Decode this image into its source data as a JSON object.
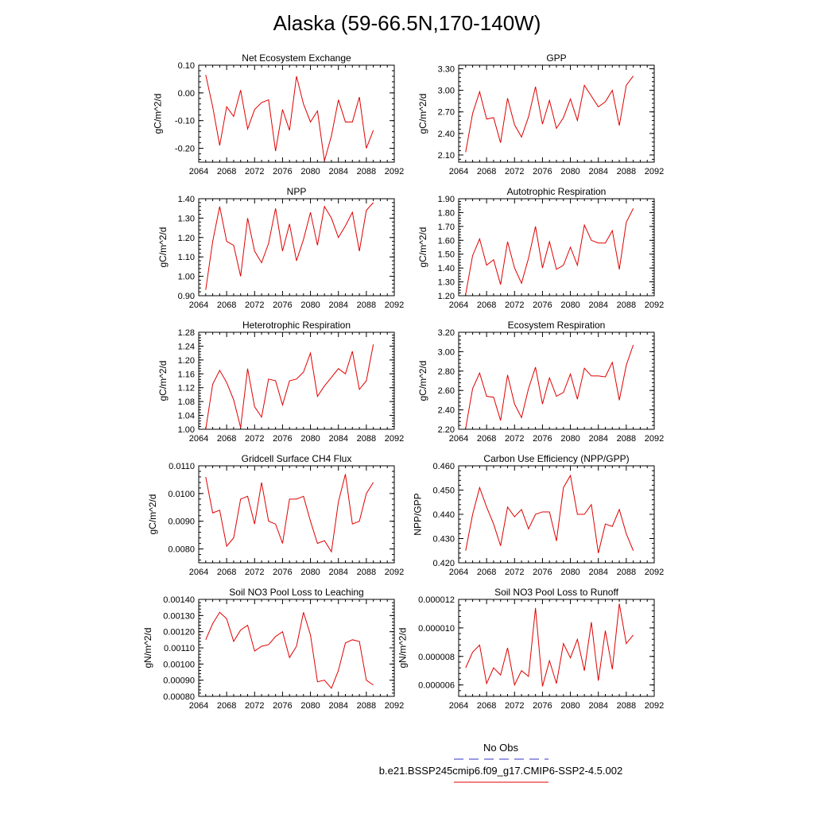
{
  "title": "Alaska (59-66.5N,170-140W)",
  "legend": {
    "obs_label": "No Obs",
    "obs_color": "#3333cc",
    "model_label": "b.e21.BSSP245cmip6.f09_g17.CMIP6-SSP2-4.5.002",
    "model_color": "#e00000"
  },
  "chart_data": [
    {
      "type": "line",
      "title": "Net Ecosystem Exchange",
      "ylabel": "gC/m^2/d",
      "xlim": [
        2064,
        2092
      ],
      "x_ticks": [
        "2064",
        "2068",
        "2072",
        "2076",
        "2080",
        "2084",
        "2088",
        "2092"
      ],
      "ylim": [
        -0.25,
        0.1
      ],
      "y_ticks": [
        "-0.20",
        "-0.10",
        "0.00",
        "0.10"
      ],
      "series": [
        {
          "x": [
            2065,
            2066,
            2067,
            2068,
            2069,
            2070,
            2071,
            2072,
            2073,
            2074,
            2075,
            2076,
            2077,
            2078,
            2079,
            2080,
            2081,
            2082,
            2083,
            2084,
            2085,
            2086,
            2087,
            2088,
            2089
          ],
          "values": [
            0.065,
            -0.05,
            -0.19,
            -0.05,
            -0.085,
            0.01,
            -0.13,
            -0.06,
            -0.035,
            -0.025,
            -0.21,
            -0.06,
            -0.135,
            0.06,
            -0.04,
            -0.105,
            -0.065,
            -0.245,
            -0.155,
            -0.025,
            -0.105,
            -0.105,
            -0.015,
            -0.2,
            -0.135
          ]
        }
      ]
    },
    {
      "type": "line",
      "title": "GPP",
      "ylabel": "gC/m^2/d",
      "xlim": [
        2064,
        2092
      ],
      "x_ticks": [
        "2064",
        "2068",
        "2072",
        "2076",
        "2080",
        "2084",
        "2088",
        "2092"
      ],
      "ylim": [
        2.0,
        3.35
      ],
      "y_ticks": [
        "2.10",
        "2.40",
        "2.70",
        "3.00",
        "3.30"
      ],
      "series": [
        {
          "x": [
            2065,
            2066,
            2067,
            2068,
            2069,
            2070,
            2071,
            2072,
            2073,
            2074,
            2075,
            2076,
            2077,
            2078,
            2079,
            2080,
            2081,
            2082,
            2083,
            2084,
            2085,
            2086,
            2087,
            2088,
            2089
          ],
          "values": [
            2.14,
            2.68,
            2.98,
            2.6,
            2.62,
            2.27,
            2.89,
            2.52,
            2.35,
            2.63,
            3.05,
            2.53,
            2.86,
            2.47,
            2.62,
            2.88,
            2.58,
            3.07,
            2.92,
            2.77,
            2.84,
            3.0,
            2.51,
            3.07,
            3.2
          ]
        }
      ]
    },
    {
      "type": "line",
      "title": "NPP",
      "ylabel": "gC/m^2/d",
      "xlim": [
        2064,
        2092
      ],
      "x_ticks": [
        "2064",
        "2068",
        "2072",
        "2076",
        "2080",
        "2084",
        "2088",
        "2092"
      ],
      "ylim": [
        0.9,
        1.4
      ],
      "y_ticks": [
        "0.90",
        "1.00",
        "1.10",
        "1.20",
        "1.30",
        "1.40"
      ],
      "series": [
        {
          "x": [
            2065,
            2066,
            2067,
            2068,
            2069,
            2070,
            2071,
            2072,
            2073,
            2074,
            2075,
            2076,
            2077,
            2078,
            2079,
            2080,
            2081,
            2082,
            2083,
            2084,
            2085,
            2086,
            2087,
            2088,
            2089
          ],
          "values": [
            0.93,
            1.18,
            1.36,
            1.18,
            1.16,
            1.0,
            1.3,
            1.13,
            1.07,
            1.17,
            1.35,
            1.13,
            1.27,
            1.08,
            1.19,
            1.33,
            1.16,
            1.36,
            1.3,
            1.2,
            1.26,
            1.33,
            1.13,
            1.34,
            1.38
          ]
        }
      ]
    },
    {
      "type": "line",
      "title": "Autotrophic Respiration",
      "ylabel": "gC/m^2/d",
      "xlim": [
        2064,
        2092
      ],
      "x_ticks": [
        "2064",
        "2068",
        "2072",
        "2076",
        "2080",
        "2084",
        "2088",
        "2092"
      ],
      "ylim": [
        1.2,
        1.9
      ],
      "y_ticks": [
        "1.20",
        "1.30",
        "1.40",
        "1.50",
        "1.60",
        "1.70",
        "1.80",
        "1.90"
      ],
      "series": [
        {
          "x": [
            2065,
            2066,
            2067,
            2068,
            2069,
            2070,
            2071,
            2072,
            2073,
            2074,
            2075,
            2076,
            2077,
            2078,
            2079,
            2080,
            2081,
            2082,
            2083,
            2084,
            2085,
            2086,
            2087,
            2088,
            2089
          ],
          "values": [
            1.21,
            1.49,
            1.61,
            1.42,
            1.46,
            1.28,
            1.59,
            1.4,
            1.29,
            1.47,
            1.7,
            1.4,
            1.59,
            1.39,
            1.42,
            1.55,
            1.42,
            1.71,
            1.6,
            1.58,
            1.58,
            1.67,
            1.39,
            1.73,
            1.83
          ]
        }
      ]
    },
    {
      "type": "line",
      "title": "Heterotrophic Respiration",
      "ylabel": "gC/m^2/d",
      "xlim": [
        2064,
        2092
      ],
      "x_ticks": [
        "2064",
        "2068",
        "2072",
        "2076",
        "2080",
        "2084",
        "2088",
        "2092"
      ],
      "ylim": [
        1.0,
        1.28
      ],
      "y_ticks": [
        "1.00",
        "1.04",
        "1.08",
        "1.12",
        "1.16",
        "1.20",
        "1.24",
        "1.28"
      ],
      "series": [
        {
          "x": [
            2065,
            2066,
            2067,
            2068,
            2069,
            2070,
            2071,
            2072,
            2073,
            2074,
            2075,
            2076,
            2077,
            2078,
            2079,
            2080,
            2081,
            2082,
            2083,
            2084,
            2085,
            2086,
            2087,
            2088,
            2089
          ],
          "values": [
            1.0,
            1.13,
            1.17,
            1.135,
            1.085,
            1.005,
            1.175,
            1.065,
            1.035,
            1.145,
            1.14,
            1.07,
            1.14,
            1.145,
            1.165,
            1.22,
            1.095,
            1.125,
            1.15,
            1.175,
            1.16,
            1.225,
            1.115,
            1.14,
            1.245
          ]
        }
      ]
    },
    {
      "type": "line",
      "title": "Ecosystem Respiration",
      "ylabel": "gC/m^2/d",
      "xlim": [
        2064,
        2092
      ],
      "x_ticks": [
        "2064",
        "2068",
        "2072",
        "2076",
        "2080",
        "2084",
        "2088",
        "2092"
      ],
      "ylim": [
        2.2,
        3.2
      ],
      "y_ticks": [
        "2.20",
        "2.40",
        "2.60",
        "2.80",
        "3.00",
        "3.20"
      ],
      "series": [
        {
          "x": [
            2065,
            2066,
            2067,
            2068,
            2069,
            2070,
            2071,
            2072,
            2073,
            2074,
            2075,
            2076,
            2077,
            2078,
            2079,
            2080,
            2081,
            2082,
            2083,
            2084,
            2085,
            2086,
            2087,
            2088,
            2089
          ],
          "values": [
            2.21,
            2.62,
            2.78,
            2.54,
            2.53,
            2.29,
            2.76,
            2.46,
            2.32,
            2.62,
            2.84,
            2.46,
            2.73,
            2.54,
            2.58,
            2.77,
            2.51,
            2.83,
            2.75,
            2.75,
            2.74,
            2.89,
            2.5,
            2.86,
            3.07
          ]
        }
      ]
    },
    {
      "type": "line",
      "title": "Gridcell Surface CH4 Flux",
      "ylabel": "gC/m^2/d",
      "xlim": [
        2064,
        2092
      ],
      "x_ticks": [
        "2064",
        "2068",
        "2072",
        "2076",
        "2080",
        "2084",
        "2088",
        "2092"
      ],
      "ylim": [
        0.0075,
        0.011
      ],
      "y_ticks": [
        "0.0080",
        "0.0090",
        "0.0100",
        "0.0110"
      ],
      "series": [
        {
          "x": [
            2065,
            2066,
            2067,
            2068,
            2069,
            2070,
            2071,
            2072,
            2073,
            2074,
            2075,
            2076,
            2077,
            2078,
            2079,
            2080,
            2081,
            2082,
            2083,
            2084,
            2085,
            2086,
            2087,
            2088,
            2089
          ],
          "values": [
            0.0106,
            0.0093,
            0.0094,
            0.0081,
            0.0084,
            0.0098,
            0.0099,
            0.0089,
            0.0104,
            0.009,
            0.0089,
            0.0082,
            0.0098,
            0.0098,
            0.0099,
            0.009,
            0.0082,
            0.0083,
            0.0079,
            0.0097,
            0.0107,
            0.0089,
            0.009,
            0.01,
            0.0104
          ]
        }
      ]
    },
    {
      "type": "line",
      "title": "Carbon Use Efficiency (NPP/GPP)",
      "ylabel": "NPP/GPP",
      "xlim": [
        2064,
        2092
      ],
      "x_ticks": [
        "2064",
        "2068",
        "2072",
        "2076",
        "2080",
        "2084",
        "2088",
        "2092"
      ],
      "ylim": [
        0.42,
        0.46
      ],
      "y_ticks": [
        "0.420",
        "0.430",
        "0.440",
        "0.450",
        "0.460"
      ],
      "series": [
        {
          "x": [
            2065,
            2066,
            2067,
            2068,
            2069,
            2070,
            2071,
            2072,
            2073,
            2074,
            2075,
            2076,
            2077,
            2078,
            2079,
            2080,
            2081,
            2082,
            2083,
            2084,
            2085,
            2086,
            2087,
            2088,
            2089
          ],
          "values": [
            0.425,
            0.44,
            0.451,
            0.443,
            0.436,
            0.427,
            0.443,
            0.439,
            0.442,
            0.434,
            0.44,
            0.441,
            0.441,
            0.429,
            0.451,
            0.456,
            0.44,
            0.44,
            0.444,
            0.424,
            0.436,
            0.435,
            0.442,
            0.432,
            0.425
          ]
        }
      ]
    },
    {
      "type": "line",
      "title": "Soil NO3 Pool Loss to Leaching",
      "ylabel": "gN/m^2/d",
      "xlim": [
        2064,
        2092
      ],
      "x_ticks": [
        "2064",
        "2068",
        "2072",
        "2076",
        "2080",
        "2084",
        "2088",
        "2092"
      ],
      "ylim": [
        0.0008,
        0.0014
      ],
      "y_ticks": [
        "0.00080",
        "0.00090",
        "0.00100",
        "0.00110",
        "0.00120",
        "0.00130",
        "0.00140"
      ],
      "series": [
        {
          "x": [
            2065,
            2066,
            2067,
            2068,
            2069,
            2070,
            2071,
            2072,
            2073,
            2074,
            2075,
            2076,
            2077,
            2078,
            2079,
            2080,
            2081,
            2082,
            2083,
            2084,
            2085,
            2086,
            2087,
            2088,
            2089
          ],
          "values": [
            0.00115,
            0.00125,
            0.00132,
            0.00128,
            0.00114,
            0.00121,
            0.00124,
            0.00108,
            0.00111,
            0.00112,
            0.00117,
            0.0012,
            0.00104,
            0.00111,
            0.00132,
            0.00118,
            0.00089,
            0.0009,
            0.00085,
            0.00096,
            0.00113,
            0.00115,
            0.00114,
            0.0009,
            0.00087
          ]
        }
      ]
    },
    {
      "type": "line",
      "title": "Soil NO3 Pool Loss to Runoff",
      "ylabel": "gN/m^2/d",
      "xlim": [
        2064,
        2092
      ],
      "x_ticks": [
        "2064",
        "2068",
        "2072",
        "2076",
        "2080",
        "2084",
        "2088",
        "2092"
      ],
      "ylim": [
        5.2e-06,
        1.2e-05
      ],
      "y_ticks": [
        "0.000006",
        "0.000008",
        "0.000010",
        "0.000012"
      ],
      "series": [
        {
          "x": [
            2065,
            2066,
            2067,
            2068,
            2069,
            2070,
            2071,
            2072,
            2073,
            2074,
            2075,
            2076,
            2077,
            2078,
            2079,
            2080,
            2081,
            2082,
            2083,
            2084,
            2085,
            2086,
            2087,
            2088,
            2089
          ],
          "values": [
            7.2e-06,
            8.3e-06,
            8.8e-06,
            6.1e-06,
            7.2e-06,
            6.7e-06,
            8.6e-06,
            6e-06,
            7e-06,
            6.6e-06,
            1.14e-05,
            5.9e-06,
            7.7e-06,
            6.1e-06,
            8.9e-06,
            7.9e-06,
            9.2e-06,
            7e-06,
            1.04e-05,
            6.3e-06,
            9.8e-06,
            7.1e-06,
            1.17e-05,
            8.9e-06,
            9.5e-06
          ]
        }
      ]
    }
  ]
}
